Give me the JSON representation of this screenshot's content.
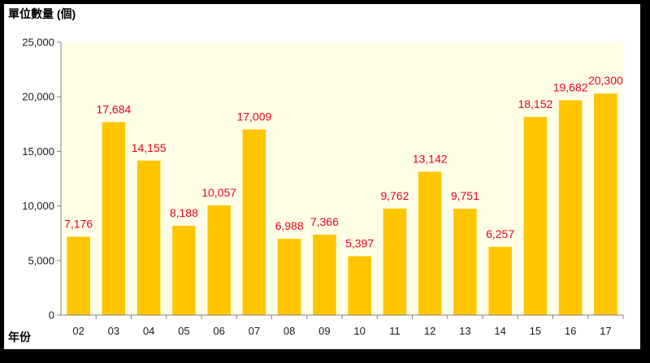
{
  "chart_data": {
    "type": "bar",
    "title": "",
    "ylabel": "單位數量 (個)",
    "xlabel": "年份",
    "categories": [
      "02",
      "03",
      "04",
      "05",
      "06",
      "07",
      "08",
      "09",
      "10",
      "11",
      "12",
      "13",
      "14",
      "15",
      "16",
      "17"
    ],
    "values": [
      7176,
      17684,
      14155,
      8188,
      10057,
      17009,
      6988,
      7366,
      5397,
      9762,
      13142,
      9751,
      6257,
      18152,
      19682,
      20300
    ],
    "data_labels": [
      "7,176",
      "17,684",
      "14,155",
      "8,188",
      "10,057",
      "17,009",
      "6,988",
      "7,366",
      "5,397",
      "9,762",
      "13,142",
      "9,751",
      "6,257",
      "18,152",
      "19,682",
      "20,300"
    ],
    "ylim": [
      0,
      25000
    ],
    "yticks": [
      0,
      5000,
      10000,
      15000,
      20000,
      25000
    ],
    "ytick_labels": [
      "0",
      "5,000",
      "10,000",
      "15,000",
      "20,000",
      "25,000"
    ],
    "grid": false,
    "legend": "none",
    "colors": {
      "bar": "#ffc600",
      "plot_background": "#ffffe8",
      "data_label": "#e8001c",
      "frame": "#000000"
    }
  }
}
